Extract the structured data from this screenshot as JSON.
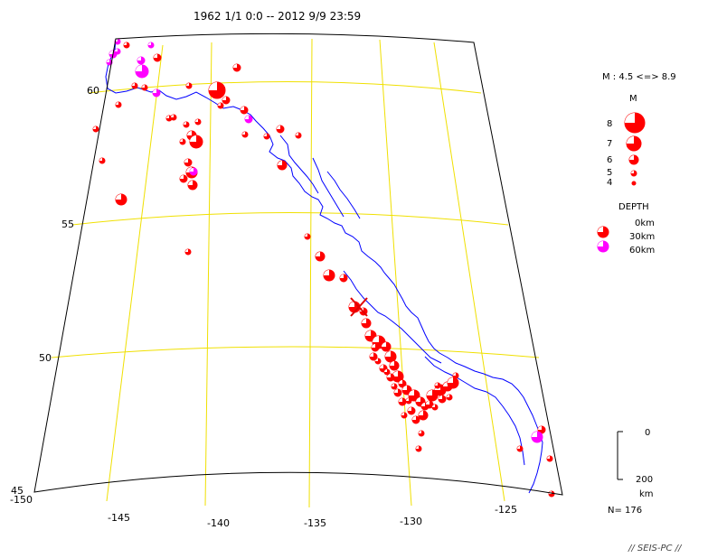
{
  "header": {
    "title": "1962 1/1 0:0 -- 2012 9/9 23:59"
  },
  "map": {
    "latitude_labels": [
      "60",
      "55",
      "50",
      "45"
    ],
    "longitude_labels": [
      "-150",
      "-145",
      "-140",
      "-135",
      "-130",
      "-125"
    ],
    "grid_color": "#f0e000",
    "frame_color": "#000000",
    "coast_color": "#0000ff",
    "mainshock_marker_color": "#e00000"
  },
  "legend": {
    "magnitude_range": "M : 4.5 <=> 8.9",
    "magnitude_title": "M",
    "magnitude_levels": [
      "8",
      "7",
      "6",
      "5",
      "4"
    ],
    "depth_title": "DEPTH",
    "depth_levels": [
      {
        "label": "0km",
        "color": "#ff0000"
      },
      {
        "label": "30km",
        "color": "#ff0000"
      },
      {
        "label": "60km",
        "color": "#ff00ff"
      }
    ],
    "depth_scale_top": "0",
    "depth_scale_bottom": "200",
    "depth_scale_unit": "km",
    "count": "N= 176"
  },
  "footer": {
    "credit": "// SEIS-PC //"
  }
}
